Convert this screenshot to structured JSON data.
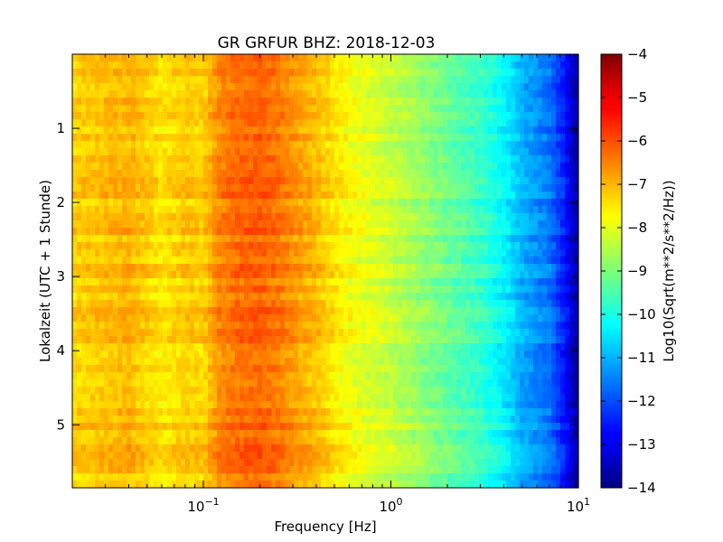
{
  "chart_data": {
    "type": "heatmap",
    "title": "GR GRFUR BHZ: 2018-12-03",
    "xlabel": "Frequency [Hz]",
    "ylabel": "Lokalzeit (UTC + 1 Stunde)",
    "x_scale": "log",
    "xlim": [
      0.02,
      10
    ],
    "ylim": [
      5.85,
      0
    ],
    "x_ticks": [
      {
        "value": 0.1,
        "label_base": "10",
        "label_exp": "−1"
      },
      {
        "value": 1,
        "label_base": "10",
        "label_exp": "0"
      },
      {
        "value": 10,
        "label_base": "10",
        "label_exp": "1"
      }
    ],
    "y_ticks": [
      {
        "value": 1,
        "label": "1"
      },
      {
        "value": 2,
        "label": "2"
      },
      {
        "value": 3,
        "label": "3"
      },
      {
        "value": 4,
        "label": "4"
      },
      {
        "value": 5,
        "label": "5"
      }
    ],
    "colorbar": {
      "label": "Log10(Sqrt(m**2/s**2/Hz))",
      "colormap": "jet",
      "range": [
        -14,
        -4
      ],
      "ticks": [
        {
          "value": -4,
          "label": "−4"
        },
        {
          "value": -5,
          "label": "−5"
        },
        {
          "value": -6,
          "label": "−6"
        },
        {
          "value": -7,
          "label": "−7"
        },
        {
          "value": -8,
          "label": "−8"
        },
        {
          "value": -9,
          "label": "−9"
        },
        {
          "value": -10,
          "label": "−10"
        },
        {
          "value": -11,
          "label": "−11"
        },
        {
          "value": -12,
          "label": "−12"
        },
        {
          "value": -13,
          "label": "−13"
        },
        {
          "value": -14,
          "label": "−14"
        }
      ]
    },
    "spectrum_profile": {
      "frequency_hz": [
        0.02,
        0.04,
        0.06,
        0.08,
        0.1,
        0.12,
        0.15,
        0.2,
        0.25,
        0.3,
        0.4,
        0.5,
        0.6,
        0.8,
        1.0,
        1.5,
        2.0,
        3.0,
        4.0,
        5.0,
        7.0,
        8.5,
        10.0
      ],
      "log10_amplitude": [
        -7.3,
        -7.0,
        -7.5,
        -7.2,
        -7.3,
        -6.6,
        -6.3,
        -6.2,
        -6.4,
        -6.7,
        -7.1,
        -7.5,
        -7.8,
        -8.1,
        -8.3,
        -8.8,
        -9.2,
        -9.7,
        -10.3,
        -11.0,
        -11.6,
        -12.6,
        -13.8
      ]
    }
  }
}
